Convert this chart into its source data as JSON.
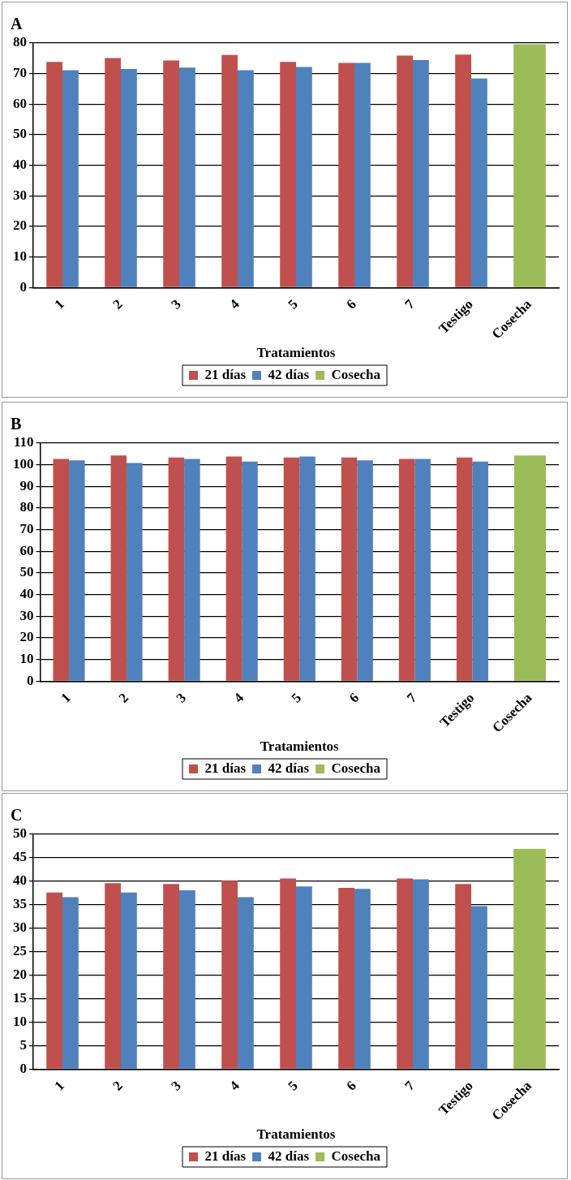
{
  "chart_data": [
    {
      "type": "bar",
      "title": "A",
      "xlabel": "Tratamientos",
      "categories": [
        "1",
        "2",
        "3",
        "4",
        "5",
        "6",
        "7",
        "Testigo",
        "Cosecha"
      ],
      "ylim": [
        0,
        80
      ],
      "yticks": [
        0,
        10,
        20,
        30,
        40,
        50,
        60,
        70,
        80
      ],
      "grid": "y",
      "legend": "bottom",
      "series": [
        {
          "name": "21 días",
          "color": "#c0504d",
          "values": [
            73.8,
            75.1,
            74.3,
            76.1,
            73.8,
            73.5,
            75.9,
            76.2,
            null
          ]
        },
        {
          "name": "42 días",
          "color": "#4f81bd",
          "values": [
            71.1,
            71.5,
            72.0,
            71.1,
            72.2,
            73.5,
            74.4,
            68.4,
            null
          ]
        },
        {
          "name": "Cosecha",
          "color": "#9bbb59",
          "values": [
            null,
            null,
            null,
            null,
            null,
            null,
            null,
            null,
            79.6
          ]
        }
      ]
    },
    {
      "type": "bar",
      "title": "B",
      "xlabel": "Tratamientos",
      "categories": [
        "1",
        "2",
        "3",
        "4",
        "5",
        "6",
        "7",
        "Testigo",
        "Cosecha"
      ],
      "ylim": [
        0,
        110
      ],
      "yticks": [
        0,
        10,
        20,
        30,
        40,
        50,
        60,
        70,
        80,
        90,
        100,
        110
      ],
      "grid": "y",
      "legend": "bottom",
      "series": [
        {
          "name": "21 días",
          "color": "#c0504d",
          "values": [
            102.7,
            104.3,
            103.3,
            103.8,
            103.3,
            103.3,
            102.7,
            103.3,
            null
          ]
        },
        {
          "name": "42 días",
          "color": "#4f81bd",
          "values": [
            102.0,
            100.8,
            102.7,
            101.5,
            103.8,
            102.0,
            102.7,
            101.5,
            null
          ]
        },
        {
          "name": "Cosecha",
          "color": "#9bbb59",
          "values": [
            null,
            null,
            null,
            null,
            null,
            null,
            null,
            null,
            104.3
          ]
        }
      ]
    },
    {
      "type": "bar",
      "title": "C",
      "xlabel": "Tratamientos",
      "categories": [
        "1",
        "2",
        "3",
        "4",
        "5",
        "6",
        "7",
        "Testigo",
        "Cosecha"
      ],
      "ylim": [
        0,
        50
      ],
      "yticks": [
        0,
        5,
        10,
        15,
        20,
        25,
        30,
        35,
        40,
        45,
        50
      ],
      "grid": "y",
      "legend": "bottom",
      "series": [
        {
          "name": "21 días",
          "color": "#c0504d",
          "values": [
            37.6,
            39.6,
            39.4,
            40.1,
            40.6,
            38.6,
            40.6,
            39.4,
            null
          ]
        },
        {
          "name": "42 días",
          "color": "#4f81bd",
          "values": [
            36.6,
            37.6,
            38.1,
            36.6,
            38.9,
            38.4,
            40.4,
            34.7,
            null
          ]
        },
        {
          "name": "Cosecha",
          "color": "#9bbb59",
          "values": [
            null,
            null,
            null,
            null,
            null,
            null,
            null,
            null,
            46.9
          ]
        }
      ]
    }
  ]
}
